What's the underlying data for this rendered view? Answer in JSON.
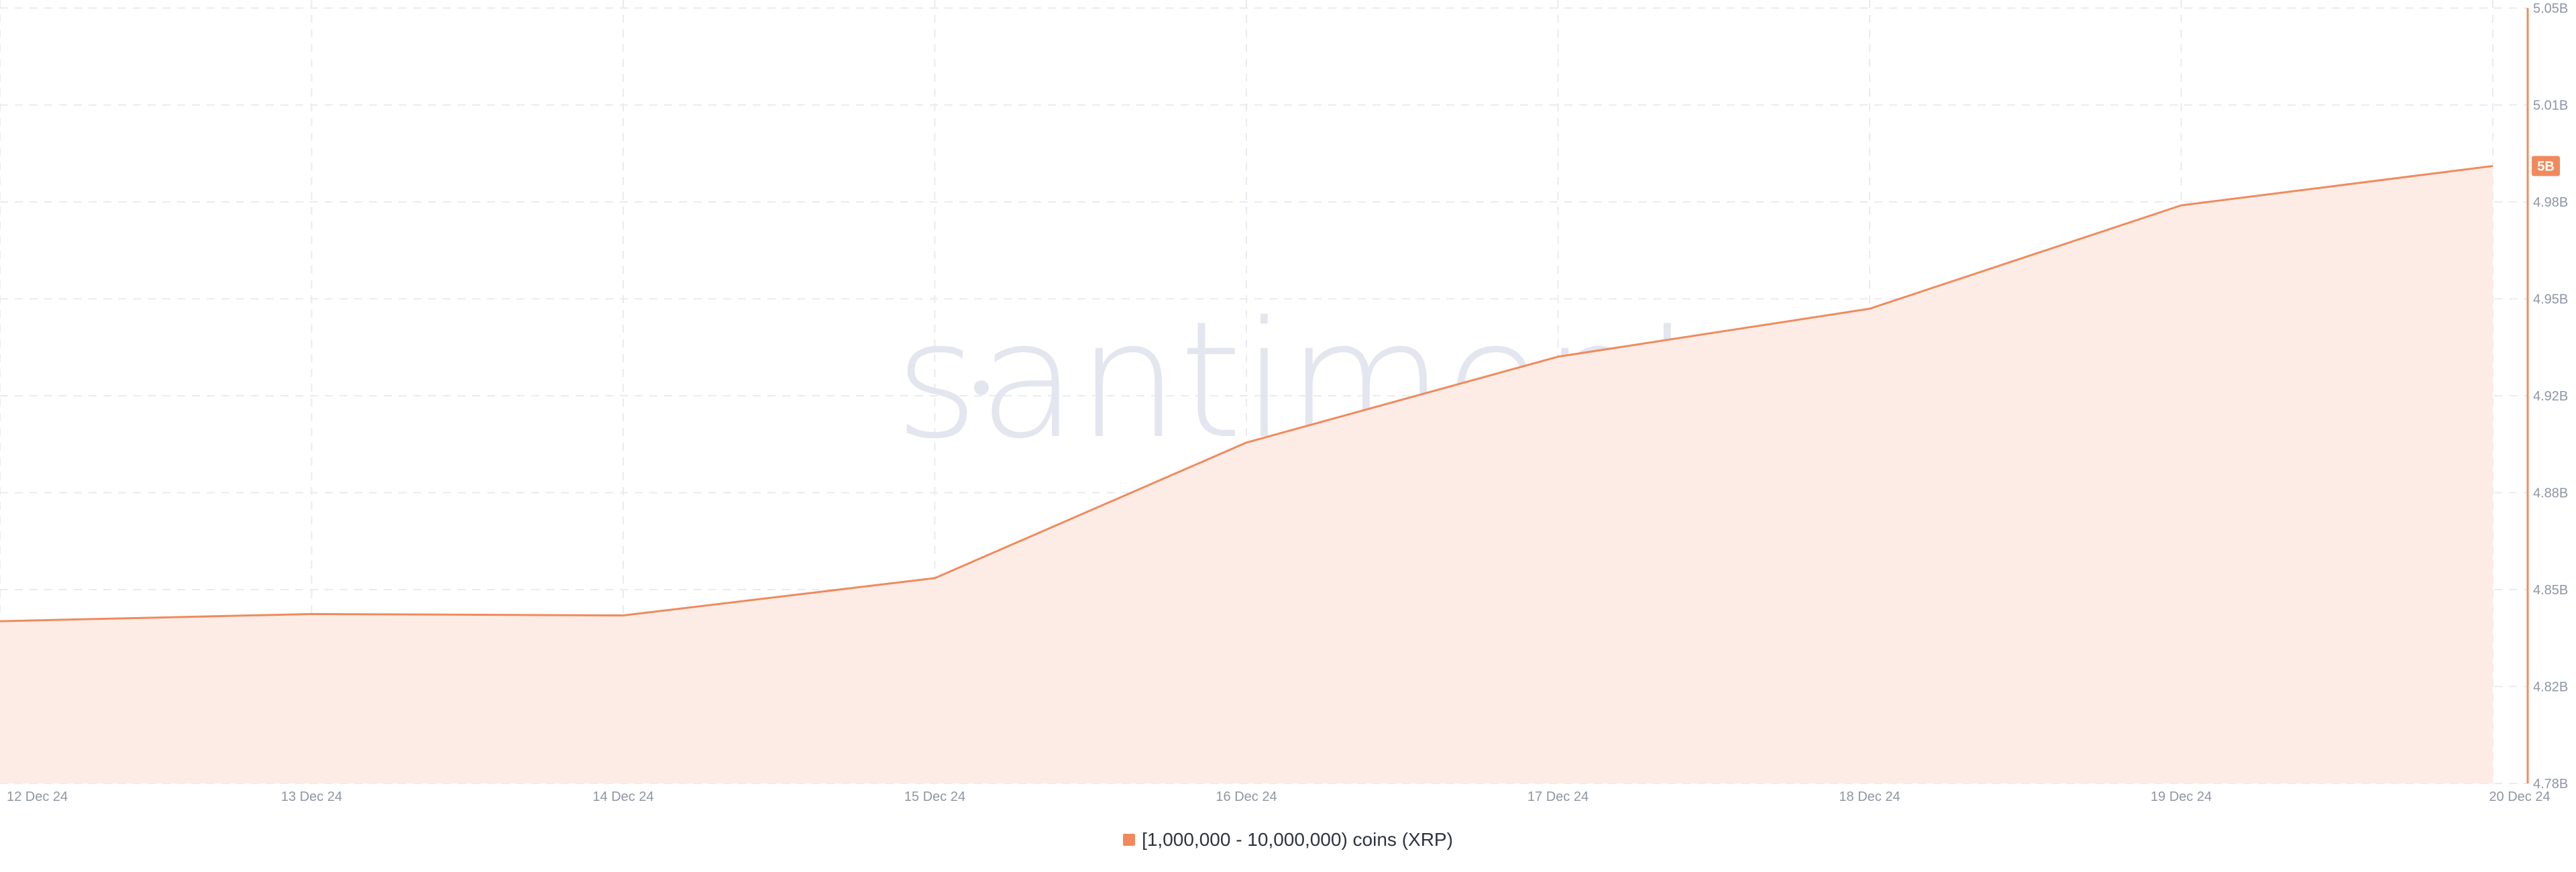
{
  "watermark": "santiment",
  "colors": {
    "line": "#f08a5d",
    "fill": "#fdece6",
    "grid": "#e9ebf0",
    "tick_text": "#8f95a3",
    "badge_text": "#ffffff",
    "watermark": "#e3e6ee"
  },
  "chart_data": {
    "type": "area",
    "categories": [
      "12 Dec 24",
      "13 Dec 24",
      "14 Dec 24",
      "15 Dec 24",
      "16 Dec 24",
      "17 Dec 24",
      "18 Dec 24",
      "19 Dec 24",
      "20 Dec 24"
    ],
    "series": [
      {
        "name": "[1,000,000 - 10,000,000) coins (XRP)",
        "values": [
          4.8365,
          4.839,
          4.8385,
          4.8515,
          4.8987,
          4.9286,
          4.9453,
          4.9813,
          4.995
        ]
      }
    ],
    "ylim": [
      4.78,
      5.05
    ],
    "y_ticks": [
      "5.05B",
      "5.01B",
      "4.98B",
      "4.95B",
      "4.92B",
      "4.88B",
      "4.85B",
      "4.82B",
      "4.78B"
    ],
    "current_value_label": "5B",
    "grid": true,
    "y_axis_position": "right",
    "legend_position": "bottom-center"
  }
}
